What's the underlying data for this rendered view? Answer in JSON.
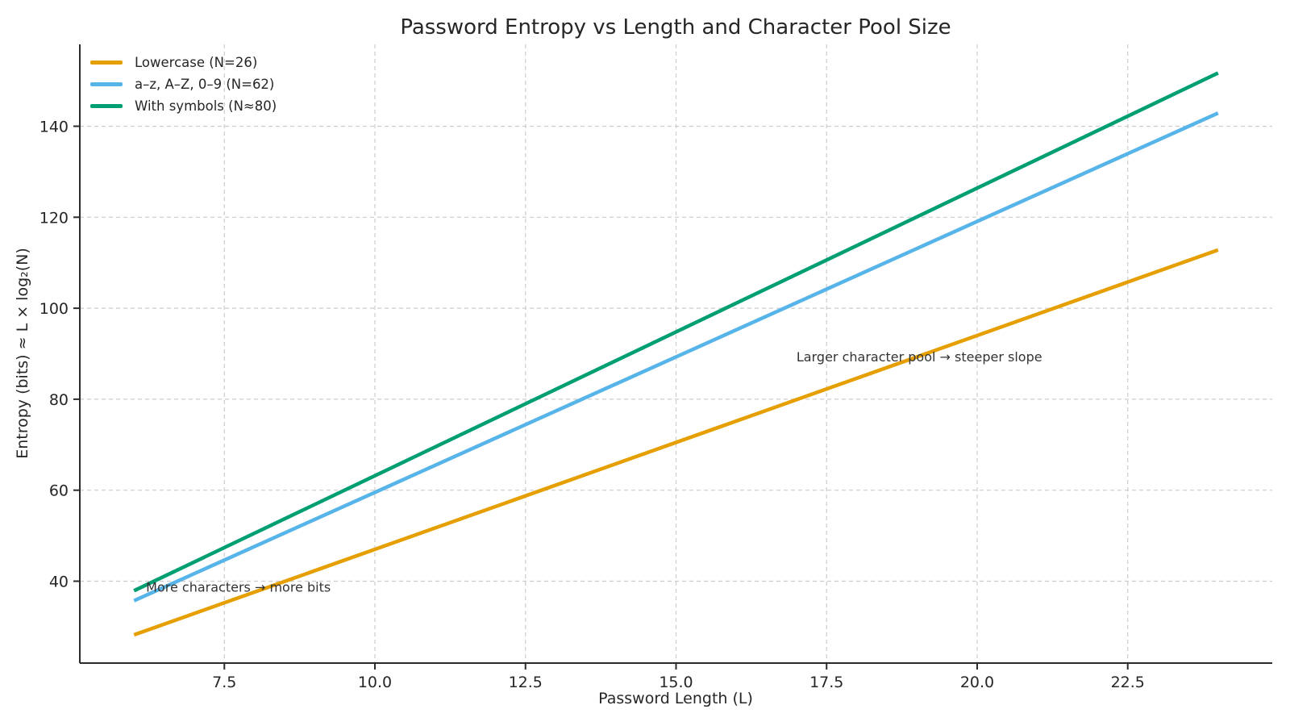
{
  "figure": {
    "background": "#ffffff",
    "text_color": "#262626",
    "grid_color": "#cccccc",
    "spine_color": "#2b2b2b"
  },
  "chart_data": {
    "type": "line",
    "title": "Password Entropy vs Length and Character Pool Size",
    "xlabel": "Password Length (L)",
    "ylabel": "Entropy (bits) ≈ L × log₂(N)",
    "grid": true,
    "legend_position": "upper-left",
    "xlim": [
      5.1,
      24.9
    ],
    "ylim": [
      22,
      158
    ],
    "xticks": [
      7.5,
      10.0,
      12.5,
      15.0,
      17.5,
      20.0,
      22.5
    ],
    "xtick_labels": [
      "7.5",
      "10.0",
      "12.5",
      "15.0",
      "17.5",
      "20.0",
      "22.5"
    ],
    "yticks": [
      40,
      60,
      80,
      100,
      120,
      140
    ],
    "ytick_labels": [
      "40",
      "60",
      "80",
      "100",
      "120",
      "140"
    ],
    "x": [
      6,
      24
    ],
    "series": [
      {
        "name": "Lowercase (N=26)",
        "color": "#E69F00",
        "pool_size": 26,
        "bits_per_char": 4.7,
        "values": [
          28.2,
          112.8
        ]
      },
      {
        "name": "a–z, A–Z, 0–9 (N=62)",
        "color": "#56B4E9",
        "pool_size": 62,
        "bits_per_char": 5.95,
        "values": [
          35.7,
          142.9
        ]
      },
      {
        "name": "With symbols (N≈80)",
        "color": "#009E73",
        "pool_size": 80,
        "bits_per_char": 6.32,
        "values": [
          37.9,
          151.7
        ]
      }
    ],
    "annotations": [
      {
        "text": "More characters → more bits",
        "x": 6.2,
        "y": 38.8
      },
      {
        "text": "Larger character pool → steeper slope",
        "x": 17.0,
        "y": 89.4
      }
    ]
  }
}
